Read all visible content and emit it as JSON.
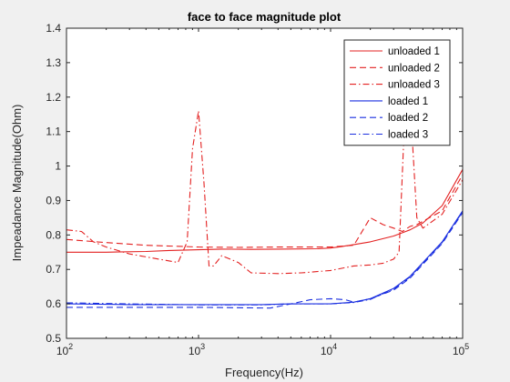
{
  "window": {
    "background": "#f0f0f0"
  },
  "chart_data": {
    "type": "line",
    "title": "face to face magnitude plot",
    "xlabel": "Frequency(Hz)",
    "ylabel": "Impeadance Magnitude(Ohm)",
    "xscale": "log",
    "xlim": [
      100,
      100000
    ],
    "ylim": [
      0.5,
      1.4
    ],
    "grid": false,
    "legend_position": "top-right",
    "x_ticks": [
      {
        "value": 100,
        "base": "10",
        "exp": "2"
      },
      {
        "value": 1000,
        "base": "10",
        "exp": "3"
      },
      {
        "value": 10000,
        "base": "10",
        "exp": "4"
      },
      {
        "value": 100000,
        "base": "10",
        "exp": "5"
      }
    ],
    "y_ticks": [
      {
        "value": 0.5,
        "label": "0.5"
      },
      {
        "value": 0.6,
        "label": "0.6"
      },
      {
        "value": 0.7,
        "label": "0.7"
      },
      {
        "value": 0.8,
        "label": "0.8"
      },
      {
        "value": 0.9,
        "label": "0.9"
      },
      {
        "value": 1.0,
        "label": "1"
      },
      {
        "value": 1.1,
        "label": "1.1"
      },
      {
        "value": 1.2,
        "label": "1.2"
      },
      {
        "value": 1.3,
        "label": "1.3"
      },
      {
        "value": 1.4,
        "label": "1.4"
      }
    ],
    "series": [
      {
        "name": "unloaded 1",
        "color": "#e32020",
        "dash": "solid",
        "x": [
          100,
          200,
          400,
          600,
          1000,
          1500,
          2500,
          4000,
          8000,
          10000,
          12000,
          15000,
          20000,
          30000,
          40000,
          50000,
          70000,
          100000
        ],
        "y": [
          0.75,
          0.75,
          0.752,
          0.755,
          0.757,
          0.759,
          0.758,
          0.759,
          0.76,
          0.762,
          0.766,
          0.772,
          0.78,
          0.797,
          0.815,
          0.835,
          0.885,
          0.99
        ]
      },
      {
        "name": "unloaded 2",
        "color": "#e32020",
        "dash": "dashed",
        "x": [
          100,
          200,
          400,
          700,
          1000,
          2000,
          4000,
          7000,
          10000,
          15000,
          20000,
          25000,
          30000,
          35000,
          40000,
          45000,
          50000,
          70000,
          100000
        ],
        "y": [
          0.787,
          0.778,
          0.77,
          0.767,
          0.765,
          0.764,
          0.765,
          0.765,
          0.765,
          0.77,
          0.85,
          0.83,
          0.82,
          0.81,
          0.825,
          0.83,
          0.84,
          0.87,
          0.975
        ]
      },
      {
        "name": "unloaded 3",
        "color": "#e32020",
        "dash": "dashdot",
        "x": [
          100,
          130,
          160,
          200,
          300,
          500,
          700,
          820,
          900,
          1000,
          1100,
          1200,
          1300,
          1500,
          2000,
          2500,
          4000,
          6000,
          10000,
          15000,
          20000,
          25000,
          30000,
          33000,
          36000,
          40000,
          45000,
          50000,
          70000,
          100000
        ],
        "y": [
          0.815,
          0.81,
          0.78,
          0.765,
          0.745,
          0.73,
          0.72,
          0.78,
          1.05,
          1.16,
          0.95,
          0.71,
          0.71,
          0.74,
          0.72,
          0.69,
          0.688,
          0.69,
          0.697,
          0.71,
          0.713,
          0.718,
          0.73,
          0.75,
          1.1,
          1.19,
          0.85,
          0.82,
          0.86,
          0.96
        ]
      },
      {
        "name": "loaded 1",
        "color": "#1a2fe0",
        "dash": "solid",
        "x": [
          100,
          300,
          1000,
          3000,
          5000,
          10000,
          15000,
          20000,
          30000,
          40000,
          50000,
          70000,
          100000
        ],
        "y": [
          0.6,
          0.598,
          0.598,
          0.598,
          0.6,
          0.6,
          0.605,
          0.615,
          0.645,
          0.68,
          0.72,
          0.78,
          0.87
        ]
      },
      {
        "name": "loaded 2",
        "color": "#1a2fe0",
        "dash": "dashed",
        "x": [
          100,
          300,
          1000,
          3500,
          5000,
          7000,
          10000,
          13000,
          15000,
          20000,
          30000,
          40000,
          50000,
          70000,
          100000
        ],
        "y": [
          0.59,
          0.59,
          0.59,
          0.588,
          0.6,
          0.612,
          0.615,
          0.612,
          0.605,
          0.615,
          0.64,
          0.675,
          0.715,
          0.775,
          0.865
        ]
      },
      {
        "name": "loaded 3",
        "color": "#1a2fe0",
        "dash": "dashdot",
        "x": [
          100,
          300,
          1000,
          3000,
          5000,
          10000,
          15000,
          20000,
          30000,
          40000,
          50000,
          70000,
          100000
        ],
        "y": [
          0.603,
          0.6,
          0.597,
          0.597,
          0.6,
          0.6,
          0.604,
          0.613,
          0.643,
          0.678,
          0.718,
          0.778,
          0.868
        ]
      }
    ]
  }
}
